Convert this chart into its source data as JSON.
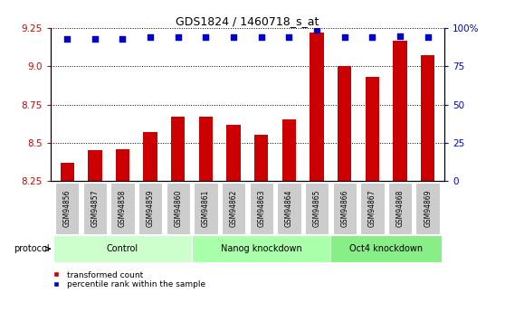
{
  "title": "GDS1824 / 1460718_s_at",
  "samples": [
    "GSM94856",
    "GSM94857",
    "GSM94858",
    "GSM94859",
    "GSM94860",
    "GSM94861",
    "GSM94862",
    "GSM94863",
    "GSM94864",
    "GSM94865",
    "GSM94866",
    "GSM94867",
    "GSM94868",
    "GSM94869"
  ],
  "transformed_count": [
    8.37,
    8.45,
    8.46,
    8.57,
    8.67,
    8.67,
    8.62,
    8.55,
    8.65,
    9.22,
    9.0,
    8.93,
    9.17,
    9.07
  ],
  "percentile_rank": [
    93,
    93,
    93,
    94,
    94,
    94,
    94,
    94,
    94,
    99,
    94,
    94,
    95,
    94
  ],
  "bar_color": "#cc0000",
  "dot_color": "#0000cc",
  "ylim_left": [
    8.25,
    9.25
  ],
  "ylim_right": [
    0,
    100
  ],
  "yticks_left": [
    8.25,
    8.5,
    8.75,
    9.0,
    9.25
  ],
  "yticks_right": [
    0,
    25,
    50,
    75,
    100
  ],
  "ytick_labels_right": [
    "0",
    "25",
    "50",
    "75",
    "100%"
  ],
  "groups": [
    {
      "label": "Control",
      "start": 0,
      "end": 4,
      "color": "#ccffcc"
    },
    {
      "label": "Nanog knockdown",
      "start": 5,
      "end": 9,
      "color": "#aaffaa"
    },
    {
      "label": "Oct4 knockdown",
      "start": 10,
      "end": 13,
      "color": "#88ee88"
    }
  ],
  "protocol_label": "protocol",
  "legend_items": [
    {
      "label": "transformed count",
      "color": "#cc0000"
    },
    {
      "label": "percentile rank within the sample",
      "color": "#0000cc"
    }
  ],
  "background_color": "#ffffff",
  "plot_bg_color": "#ffffff",
  "xtick_bg": "#cccccc",
  "left_tick_color": "#cc0000",
  "right_tick_color": "#0000cc",
  "bar_width": 0.5,
  "dot_size": 16,
  "title_fontsize": 9,
  "tick_fontsize": 7.5,
  "label_fontsize": 7,
  "legend_fontsize": 6.5
}
